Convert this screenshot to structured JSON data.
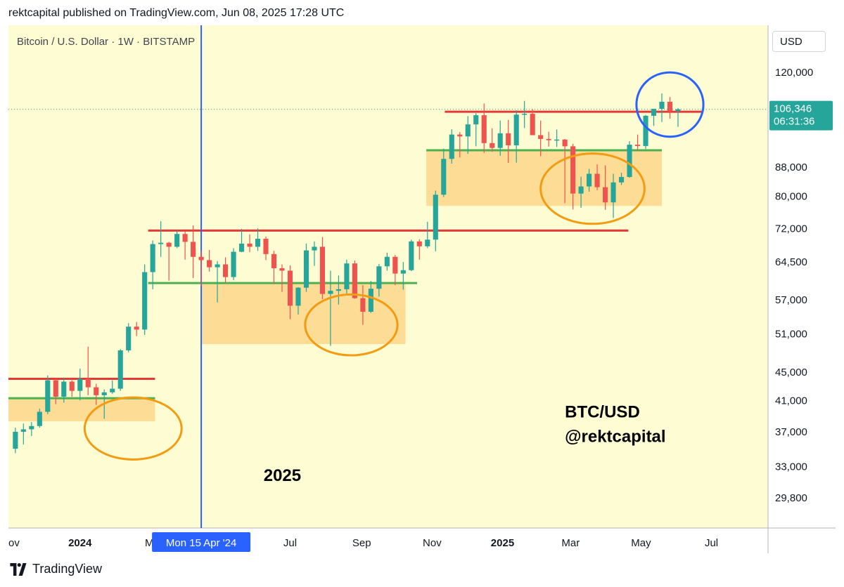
{
  "header": {
    "published": "rektcapital published on TradingView.com, Jun 08, 2025 17:28 UTC"
  },
  "footer": {
    "brand": "TradingView"
  },
  "currency": "USD",
  "colors": {
    "background": "#fefcd3",
    "bull": "#26a69a",
    "bear": "#ef5350",
    "resistance": "#e53935",
    "support": "#4caf50",
    "zone": "#fdd68a",
    "highlight_circle": "#f39c12",
    "current_circle": "#2962ff",
    "vertical_marker": "#2962ff",
    "price_label": "#26a69a"
  },
  "chart_data": {
    "type": "candlestick",
    "title": "Bitcoin / U.S. Dollar · 1W · BITSTAMP",
    "scale": "log",
    "ylim": [
      27000,
      140000
    ],
    "y_ticks": [
      120000,
      88000,
      80000,
      72000,
      64500,
      57000,
      51000,
      45000,
      41000,
      37000,
      33000,
      29800
    ],
    "x_ticks": [
      {
        "label": "ov",
        "date": "2023-11-01"
      },
      {
        "label": "2024",
        "date": "2024-01-01",
        "bold": true
      },
      {
        "label": "M",
        "date": "2024-03-01"
      },
      {
        "label": "Jul",
        "date": "2024-07-01"
      },
      {
        "label": "Sep",
        "date": "2024-09-01"
      },
      {
        "label": "Nov",
        "date": "2024-11-01"
      },
      {
        "label": "2025",
        "date": "2025-01-01",
        "bold": true
      },
      {
        "label": "Mar",
        "date": "2025-03-01"
      },
      {
        "label": "May",
        "date": "2025-05-01"
      },
      {
        "label": "Jul",
        "date": "2025-07-01"
      }
    ],
    "xlim": [
      "2023-10-31",
      "2025-08-19"
    ],
    "current_price": {
      "value": 106346,
      "label": "106,346",
      "countdown": "06:31:36"
    },
    "vertical_marker": {
      "date": "2024-04-15",
      "label": "Mon 15 Apr '24"
    },
    "annotations": [
      {
        "text": "BTC/USD",
        "date": "2025-02-24",
        "price": 38800
      },
      {
        "text": "@rektcapital",
        "date": "2025-02-24",
        "price": 35800
      },
      {
        "text": "2025",
        "date": "2024-06-08",
        "price": 31500
      }
    ],
    "levels": [
      {
        "kind": "resistance",
        "price": 44000,
        "from": "2023-10-31",
        "to": "2024-03-06"
      },
      {
        "kind": "support",
        "price": 41300,
        "from": "2023-10-31",
        "to": "2024-03-06"
      },
      {
        "kind": "resistance",
        "price": 71500,
        "from": "2024-02-29",
        "to": "2025-04-20"
      },
      {
        "kind": "support",
        "price": 60200,
        "from": "2024-02-29",
        "to": "2024-10-19"
      },
      {
        "kind": "resistance",
        "price": 105500,
        "from": "2024-11-12",
        "to": "2025-06-24"
      },
      {
        "kind": "support",
        "price": 93000,
        "from": "2024-10-27",
        "to": "2025-05-19"
      }
    ],
    "zones": [
      {
        "from": "2023-10-31",
        "to": "2024-03-06",
        "low": 38300,
        "high": 41300
      },
      {
        "from": "2024-04-15",
        "to": "2024-10-09",
        "low": 49300,
        "high": 60200
      },
      {
        "from": "2024-10-27",
        "to": "2025-05-19",
        "low": 77500,
        "high": 93000
      }
    ],
    "circles": [
      {
        "kind": "highlight",
        "date": "2024-02-16",
        "price": 37400,
        "radius_days": 42,
        "radius_y_price": 41400
      },
      {
        "kind": "highlight",
        "date": "2024-08-23",
        "price": 52500,
        "radius_days": 40,
        "radius_y_price": 58000
      },
      {
        "kind": "highlight",
        "date": "2025-03-20",
        "price": 82000,
        "radius_days": 45,
        "radius_y_price": 92000
      },
      {
        "kind": "current",
        "date": "2025-05-26",
        "price": 108000,
        "radius_days": 29,
        "radius_y_price": 120000
      }
    ],
    "candles": [
      {
        "t": "2023-11-06",
        "o": 35000,
        "h": 37500,
        "l": 34500,
        "c": 37000
      },
      {
        "t": "2023-11-13",
        "o": 37000,
        "h": 38000,
        "l": 35500,
        "c": 37300
      },
      {
        "t": "2023-11-20",
        "o": 37300,
        "h": 38200,
        "l": 36500,
        "c": 37700
      },
      {
        "t": "2023-11-27",
        "o": 37700,
        "h": 39900,
        "l": 37500,
        "c": 39500
      },
      {
        "t": "2023-12-04",
        "o": 39500,
        "h": 44500,
        "l": 39200,
        "c": 43800
      },
      {
        "t": "2023-12-11",
        "o": 43800,
        "h": 44000,
        "l": 40500,
        "c": 41500
      },
      {
        "t": "2023-12-18",
        "o": 41500,
        "h": 44200,
        "l": 40700,
        "c": 43600
      },
      {
        "t": "2023-12-25",
        "o": 43600,
        "h": 43800,
        "l": 41500,
        "c": 42300
      },
      {
        "t": "2024-01-01",
        "o": 42300,
        "h": 45500,
        "l": 41000,
        "c": 44000
      },
      {
        "t": "2024-01-08",
        "o": 44000,
        "h": 48900,
        "l": 41700,
        "c": 42800
      },
      {
        "t": "2024-01-15",
        "o": 42800,
        "h": 43300,
        "l": 40400,
        "c": 41700
      },
      {
        "t": "2024-01-22",
        "o": 41700,
        "h": 42500,
        "l": 38600,
        "c": 42100
      },
      {
        "t": "2024-01-29",
        "o": 42100,
        "h": 43800,
        "l": 41900,
        "c": 42600
      },
      {
        "t": "2024-02-05",
        "o": 42600,
        "h": 48500,
        "l": 42300,
        "c": 48300
      },
      {
        "t": "2024-02-12",
        "o": 48300,
        "h": 52800,
        "l": 48000,
        "c": 52200
      },
      {
        "t": "2024-02-19",
        "o": 52200,
        "h": 53000,
        "l": 50600,
        "c": 51700
      },
      {
        "t": "2024-02-26",
        "o": 51700,
        "h": 64000,
        "l": 50800,
        "c": 62400
      },
      {
        "t": "2024-03-04",
        "o": 62400,
        "h": 69200,
        "l": 59000,
        "c": 68400
      },
      {
        "t": "2024-03-11",
        "o": 68400,
        "h": 73700,
        "l": 65600,
        "c": 68700
      },
      {
        "t": "2024-03-18",
        "o": 68700,
        "h": 68900,
        "l": 60700,
        "c": 67800
      },
      {
        "t": "2024-03-25",
        "o": 67800,
        "h": 71500,
        "l": 67500,
        "c": 70700
      },
      {
        "t": "2024-04-01",
        "o": 70700,
        "h": 71300,
        "l": 65000,
        "c": 68900
      },
      {
        "t": "2024-04-08",
        "o": 68900,
        "h": 72700,
        "l": 61200,
        "c": 65600
      },
      {
        "t": "2024-04-15",
        "o": 65600,
        "h": 66900,
        "l": 59600,
        "c": 64900
      },
      {
        "t": "2024-04-22",
        "o": 64900,
        "h": 67100,
        "l": 62500,
        "c": 63400
      },
      {
        "t": "2024-04-29",
        "o": 63400,
        "h": 64700,
        "l": 56500,
        "c": 64000
      },
      {
        "t": "2024-05-06",
        "o": 64000,
        "h": 65500,
        "l": 60200,
        "c": 61400
      },
      {
        "t": "2024-05-13",
        "o": 61400,
        "h": 67500,
        "l": 60800,
        "c": 66700
      },
      {
        "t": "2024-05-20",
        "o": 66700,
        "h": 71900,
        "l": 66600,
        "c": 68500
      },
      {
        "t": "2024-05-27",
        "o": 68500,
        "h": 70600,
        "l": 66600,
        "c": 67800
      },
      {
        "t": "2024-06-03",
        "o": 67800,
        "h": 72000,
        "l": 66900,
        "c": 69600
      },
      {
        "t": "2024-06-10",
        "o": 69600,
        "h": 70100,
        "l": 64900,
        "c": 66200
      },
      {
        "t": "2024-06-17",
        "o": 66200,
        "h": 66900,
        "l": 60000,
        "c": 63200
      },
      {
        "t": "2024-06-24",
        "o": 63200,
        "h": 64000,
        "l": 58500,
        "c": 62700
      },
      {
        "t": "2024-07-01",
        "o": 62700,
        "h": 63800,
        "l": 53500,
        "c": 55900
      },
      {
        "t": "2024-07-08",
        "o": 55900,
        "h": 59400,
        "l": 54300,
        "c": 59300
      },
      {
        "t": "2024-07-15",
        "o": 59300,
        "h": 68500,
        "l": 58500,
        "c": 67000
      },
      {
        "t": "2024-07-22",
        "o": 67000,
        "h": 69000,
        "l": 63700,
        "c": 67800
      },
      {
        "t": "2024-07-29",
        "o": 67800,
        "h": 70000,
        "l": 57100,
        "c": 58100
      },
      {
        "t": "2024-08-05",
        "o": 58100,
        "h": 62700,
        "l": 49000,
        "c": 58700
      },
      {
        "t": "2024-08-12",
        "o": 58700,
        "h": 61700,
        "l": 56100,
        "c": 59000
      },
      {
        "t": "2024-08-19",
        "o": 59000,
        "h": 65000,
        "l": 57800,
        "c": 64200
      },
      {
        "t": "2024-08-26",
        "o": 64200,
        "h": 64800,
        "l": 57200,
        "c": 57300
      },
      {
        "t": "2024-09-02",
        "o": 57300,
        "h": 59800,
        "l": 52500,
        "c": 54800
      },
      {
        "t": "2024-09-09",
        "o": 54800,
        "h": 60600,
        "l": 54600,
        "c": 59100
      },
      {
        "t": "2024-09-16",
        "o": 59100,
        "h": 64100,
        "l": 57600,
        "c": 63600
      },
      {
        "t": "2024-09-23",
        "o": 63600,
        "h": 66500,
        "l": 62700,
        "c": 65600
      },
      {
        "t": "2024-09-30",
        "o": 65600,
        "h": 66000,
        "l": 59800,
        "c": 62100
      },
      {
        "t": "2024-10-07",
        "o": 62100,
        "h": 64500,
        "l": 58900,
        "c": 62800
      },
      {
        "t": "2024-10-14",
        "o": 62800,
        "h": 69400,
        "l": 62600,
        "c": 69000
      },
      {
        "t": "2024-10-21",
        "o": 69000,
        "h": 69500,
        "l": 65000,
        "c": 67900
      },
      {
        "t": "2024-10-28",
        "o": 67900,
        "h": 73600,
        "l": 67500,
        "c": 69400
      },
      {
        "t": "2024-11-04",
        "o": 69400,
        "h": 81500,
        "l": 66800,
        "c": 80400
      },
      {
        "t": "2024-11-11",
        "o": 80400,
        "h": 93500,
        "l": 79800,
        "c": 90400
      },
      {
        "t": "2024-11-18",
        "o": 90400,
        "h": 99600,
        "l": 89000,
        "c": 97900
      },
      {
        "t": "2024-11-25",
        "o": 97900,
        "h": 98700,
        "l": 90800,
        "c": 97300
      },
      {
        "t": "2024-12-02",
        "o": 97300,
        "h": 104000,
        "l": 91900,
        "c": 101200
      },
      {
        "t": "2024-12-09",
        "o": 101200,
        "h": 105000,
        "l": 94200,
        "c": 104300
      },
      {
        "t": "2024-12-16",
        "o": 104300,
        "h": 108400,
        "l": 92200,
        "c": 95200
      },
      {
        "t": "2024-12-23",
        "o": 95200,
        "h": 99900,
        "l": 92500,
        "c": 93700
      },
      {
        "t": "2024-12-30",
        "o": 93700,
        "h": 102500,
        "l": 91300,
        "c": 98300
      },
      {
        "t": "2025-01-06",
        "o": 98300,
        "h": 102700,
        "l": 89200,
        "c": 94500
      },
      {
        "t": "2025-01-13",
        "o": 94500,
        "h": 106000,
        "l": 89300,
        "c": 104500
      },
      {
        "t": "2025-01-20",
        "o": 104500,
        "h": 109300,
        "l": 100000,
        "c": 104800
      },
      {
        "t": "2025-01-27",
        "o": 104800,
        "h": 106400,
        "l": 97800,
        "c": 97700
      },
      {
        "t": "2025-02-03",
        "o": 97700,
        "h": 102500,
        "l": 91200,
        "c": 96500
      },
      {
        "t": "2025-02-10",
        "o": 96500,
        "h": 98800,
        "l": 94100,
        "c": 96100
      },
      {
        "t": "2025-02-17",
        "o": 96100,
        "h": 99500,
        "l": 94000,
        "c": 96300
      },
      {
        "t": "2025-02-24",
        "o": 96300,
        "h": 96500,
        "l": 78200,
        "c": 94200
      },
      {
        "t": "2025-03-03",
        "o": 94200,
        "h": 95000,
        "l": 76600,
        "c": 80700
      },
      {
        "t": "2025-03-10",
        "o": 80700,
        "h": 85300,
        "l": 77000,
        "c": 82600
      },
      {
        "t": "2025-03-17",
        "o": 82600,
        "h": 87500,
        "l": 81200,
        "c": 86100
      },
      {
        "t": "2025-03-24",
        "o": 86100,
        "h": 88800,
        "l": 81600,
        "c": 82400
      },
      {
        "t": "2025-03-31",
        "o": 82400,
        "h": 88500,
        "l": 76500,
        "c": 78400
      },
      {
        "t": "2025-04-07",
        "o": 78400,
        "h": 86100,
        "l": 74500,
        "c": 83700
      },
      {
        "t": "2025-04-14",
        "o": 83700,
        "h": 86400,
        "l": 83000,
        "c": 85200
      },
      {
        "t": "2025-04-21",
        "o": 85200,
        "h": 95800,
        "l": 85000,
        "c": 94700
      },
      {
        "t": "2025-04-28",
        "o": 94700,
        "h": 97900,
        "l": 92900,
        "c": 94300
      },
      {
        "t": "2025-05-05",
        "o": 94300,
        "h": 104400,
        "l": 93400,
        "c": 104100
      },
      {
        "t": "2025-05-12",
        "o": 104100,
        "h": 105800,
        "l": 100700,
        "c": 106500
      },
      {
        "t": "2025-05-19",
        "o": 106500,
        "h": 112000,
        "l": 102000,
        "c": 109000
      },
      {
        "t": "2025-05-26",
        "o": 109000,
        "h": 110700,
        "l": 103100,
        "c": 105700
      },
      {
        "t": "2025-06-02",
        "o": 105700,
        "h": 106800,
        "l": 100400,
        "c": 106346
      }
    ]
  }
}
